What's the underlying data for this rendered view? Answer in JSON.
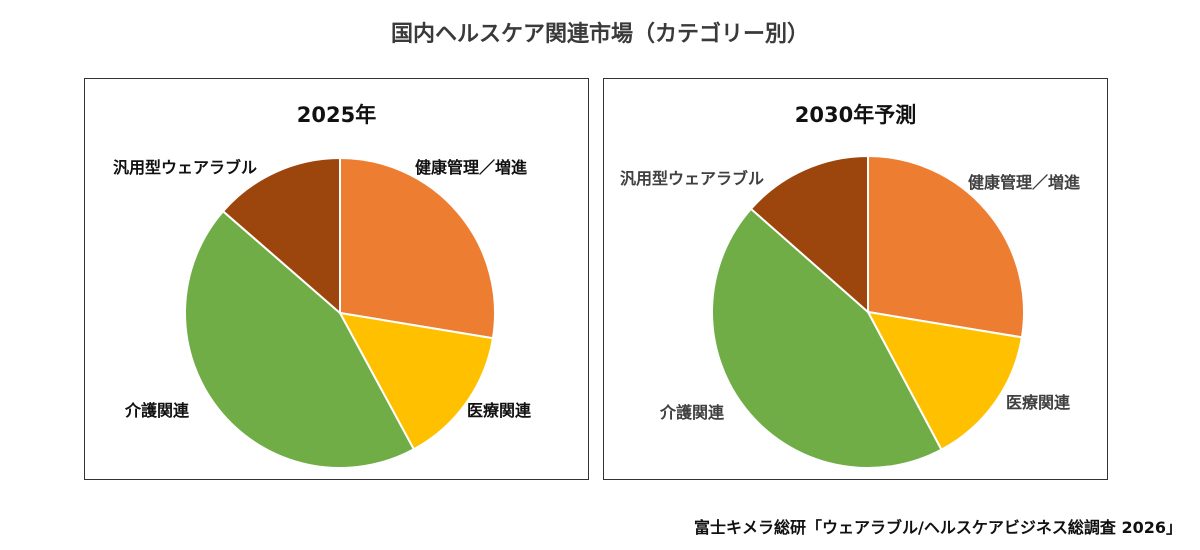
{
  "title": "国内ヘルスケア関連市場（カテゴリー別）",
  "source": "富士キメラ総研「ウェアラブル/ヘルスケアビジネス総調査 2026」",
  "colors": {
    "health": "#ED7D31",
    "medical": "#FFC000",
    "care": "#70AD47",
    "wearable": "#9C450C"
  },
  "chart_data": [
    {
      "type": "pie",
      "title": "2025年",
      "categories": [
        "健康管理／増進",
        "医療関連",
        "介護関連",
        "汎用型ウェアラブル"
      ],
      "values": [
        27.6,
        14.5,
        44.3,
        13.6
      ],
      "unit": "%"
    },
    {
      "type": "pie",
      "title": "2030年予測",
      "categories": [
        "健康管理／増進",
        "医療関連",
        "介護関連",
        "汎用型ウェアラブル"
      ],
      "values": [
        27.6,
        14.6,
        44.3,
        13.5
      ],
      "unit": "%"
    }
  ]
}
